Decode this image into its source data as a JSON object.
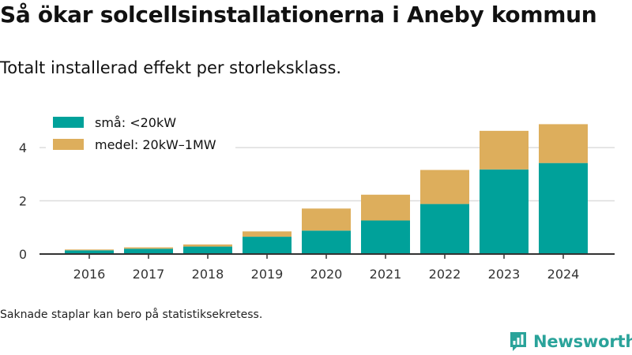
{
  "title": "Så ökar solcellsinstallationerna i Aneby kommun",
  "subtitle": "Totalt installerad effekt per storleksklass.",
  "footnote": "Saknade staplar kan bero på statistiksekretess.",
  "logo_text": "Newsworthy",
  "colors": {
    "small": "#00a19a",
    "medium": "#ddae5c",
    "axis": "#333333",
    "grid": "#dddddd",
    "logo": "#2aa39a"
  },
  "chart_data": {
    "type": "bar",
    "stacked": true,
    "categories": [
      "2016",
      "2017",
      "2018",
      "2019",
      "2020",
      "2021",
      "2022",
      "2023",
      "2024"
    ],
    "series": [
      {
        "name": "små: <20kW",
        "values": [
          0.14,
          0.2,
          0.28,
          0.65,
          0.88,
          1.26,
          1.88,
          3.18,
          3.42
        ],
        "color": "#00a19a"
      },
      {
        "name": "medel: 20kW–1MW",
        "values": [
          0.03,
          0.05,
          0.08,
          0.2,
          0.83,
          0.97,
          1.28,
          1.45,
          1.46
        ],
        "color": "#ddae5c"
      }
    ],
    "y_ticks": [
      0,
      2,
      4
    ],
    "ylim": [
      0,
      5.1
    ],
    "xlabel": "",
    "ylabel": "",
    "grid": true,
    "legend_position": "top-left"
  }
}
